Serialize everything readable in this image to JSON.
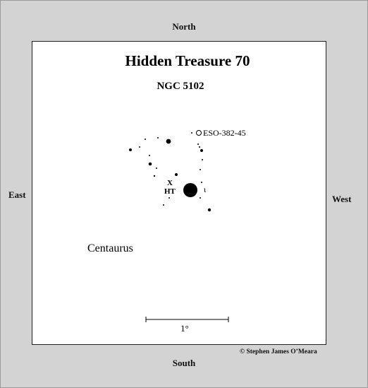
{
  "title": "Hidden Treasure 70",
  "subtitle": "NGC 5102",
  "directions": {
    "north": "North",
    "south": "South",
    "east": "East",
    "west": "West"
  },
  "labels": {
    "galaxy": "ESO-382-45",
    "x_marker": "X",
    "ht_marker": "HT",
    "iota": "ι",
    "constellation": "Centaurus",
    "scale": "1°"
  },
  "copyright": "© Stephen James O’Meara",
  "colors": {
    "background": "#d3d3d3",
    "chart": "#ffffff",
    "ink": "#000000"
  }
}
